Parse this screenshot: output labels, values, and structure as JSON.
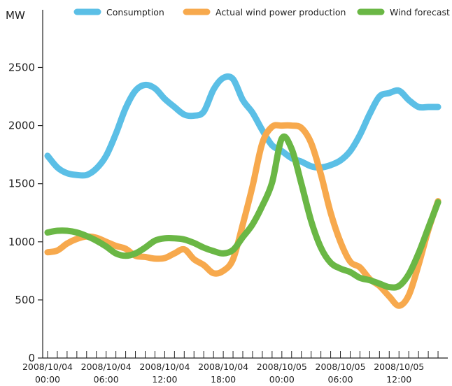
{
  "chart_data": {
    "type": "line",
    "ylabel": "MW",
    "ylim": [
      0,
      2900
    ],
    "yticks": [
      0,
      500,
      1000,
      1500,
      2000,
      2500
    ],
    "x_tick_labels": [
      {
        "x": 0,
        "date": "2008/10/04",
        "time": "00:00"
      },
      {
        "x": 6,
        "date": "2008/10/04",
        "time": "06:00"
      },
      {
        "x": 12,
        "date": "2008/10/04",
        "time": "12:00"
      },
      {
        "x": 18,
        "date": "2008/10/04",
        "time": "18:00"
      },
      {
        "x": 24,
        "date": "2008/10/05",
        "time": "00:00"
      },
      {
        "x": 30,
        "date": "2008/10/05",
        "time": "06:00"
      },
      {
        "x": 36,
        "date": "2008/10/05",
        "time": "12:00"
      }
    ],
    "xlim": [
      -0.5,
      41
    ],
    "minor_ticks_per_hour": 1,
    "legend_position": "top",
    "series": [
      {
        "name": "Consumption",
        "color": "#5bbfe6",
        "x": [
          0,
          1,
          2,
          3,
          4,
          5,
          6,
          7,
          8,
          9,
          10,
          11,
          12,
          13,
          14,
          15,
          16,
          17,
          18,
          19,
          20,
          21,
          22,
          23,
          24,
          25,
          26,
          27,
          28,
          29,
          30,
          31,
          32,
          33,
          34,
          35,
          36,
          37,
          38,
          39,
          40
        ],
        "values": [
          1740,
          1640,
          1590,
          1575,
          1575,
          1630,
          1740,
          1930,
          2150,
          2300,
          2350,
          2320,
          2230,
          2160,
          2095,
          2085,
          2120,
          2310,
          2410,
          2400,
          2220,
          2110,
          1960,
          1830,
          1780,
          1720,
          1690,
          1650,
          1640,
          1660,
          1700,
          1780,
          1920,
          2100,
          2250,
          2280,
          2300,
          2220,
          2160,
          2160,
          2160
        ]
      },
      {
        "name": "Actual wind power production",
        "color": "#f7a94d",
        "x": [
          0,
          1,
          2,
          3,
          4,
          5,
          6,
          7,
          8,
          9,
          10,
          11,
          12,
          13,
          14,
          15,
          16,
          17,
          18,
          19,
          20,
          21,
          22,
          23,
          24,
          25,
          26,
          27,
          28,
          29,
          30,
          31,
          32,
          33,
          34,
          35,
          36,
          37,
          38,
          39,
          40
        ],
        "values": [
          910,
          925,
          985,
          1025,
          1045,
          1035,
          1000,
          965,
          940,
          880,
          870,
          855,
          860,
          900,
          935,
          850,
          800,
          730,
          750,
          850,
          1150,
          1480,
          1850,
          1990,
          2000,
          2000,
          1980,
          1850,
          1580,
          1250,
          1000,
          830,
          780,
          680,
          620,
          530,
          450,
          540,
          800,
          1100,
          1350
        ]
      },
      {
        "name": "Wind forecast",
        "color": "#6ab745",
        "x": [
          0,
          1,
          2,
          3,
          4,
          5,
          6,
          7,
          8,
          9,
          10,
          11,
          12,
          13,
          14,
          15,
          16,
          17,
          18,
          19,
          20,
          21,
          22,
          23,
          24,
          25,
          26,
          27,
          28,
          29,
          30,
          31,
          32,
          33,
          34,
          35,
          36,
          37,
          38,
          39,
          40
        ],
        "values": [
          1080,
          1095,
          1095,
          1080,
          1050,
          1010,
          960,
          900,
          880,
          900,
          950,
          1010,
          1030,
          1030,
          1020,
          990,
          950,
          920,
          900,
          930,
          1040,
          1150,
          1310,
          1510,
          1890,
          1800,
          1500,
          1180,
          950,
          820,
          770,
          740,
          690,
          670,
          640,
          610,
          620,
          720,
          900,
          1120,
          1340
        ]
      }
    ]
  }
}
